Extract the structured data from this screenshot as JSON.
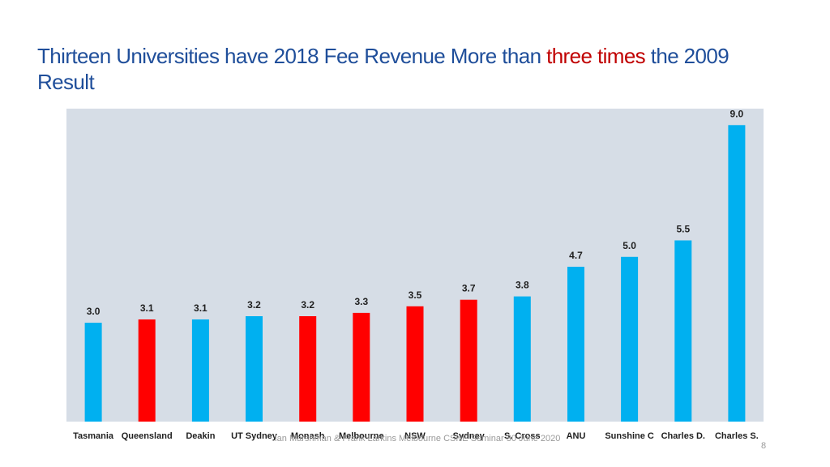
{
  "slide": {
    "title_part1": "Thirteen Universities have 2018 Fee Revenue More than ",
    "title_highlight": "three times",
    "title_part2": " the 2009 Result",
    "footer": "Ian Marshman & Frank Larkins Melbourne CSHE Seminar 30 June 2020",
    "page_number": "8"
  },
  "colors": {
    "title": "#1f4e9a",
    "highlight": "#c00000",
    "plot_background": "#d6dde6",
    "bar_blue": "#00b0f0",
    "bar_red": "#ff0000",
    "text": "#1f1f1f"
  },
  "chart_data": {
    "type": "bar",
    "title": "",
    "xlabel": "",
    "ylabel": "",
    "ylim": [
      0,
      9.5
    ],
    "grid": false,
    "categories": [
      "Tasmania",
      "Queensland",
      "Deakin",
      "UT Sydney",
      "Monash",
      "Melbourne",
      "NSW",
      "Sydney",
      "S. Cross",
      "ANU",
      "Sunshine C",
      "Charles D.",
      "Charles S."
    ],
    "values": [
      3.0,
      3.1,
      3.1,
      3.2,
      3.2,
      3.3,
      3.5,
      3.7,
      3.8,
      4.7,
      5.0,
      5.5,
      9.0
    ],
    "value_labels": [
      "3.0",
      "3.1",
      "3.1",
      "3.2",
      "3.2",
      "3.3",
      "3.5",
      "3.7",
      "3.8",
      "4.7",
      "5.0",
      "5.5",
      "9.0"
    ],
    "bar_colors": [
      "blue",
      "red",
      "blue",
      "blue",
      "red",
      "red",
      "red",
      "red",
      "blue",
      "blue",
      "blue",
      "blue",
      "blue"
    ]
  }
}
